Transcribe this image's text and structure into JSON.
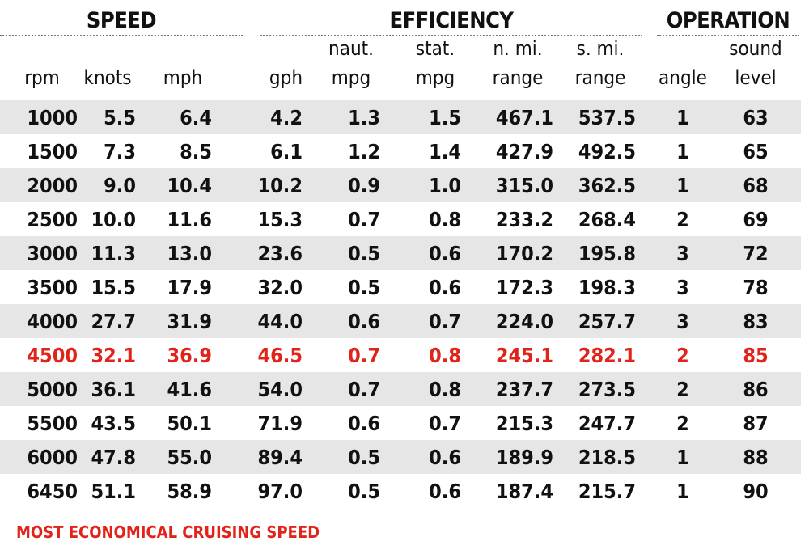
{
  "chart_data": {
    "type": "table",
    "groups": [
      {
        "key": "speed",
        "title": "SPEED"
      },
      {
        "key": "efficiency",
        "title": "EFFICIENCY"
      },
      {
        "key": "operation",
        "title": "OPERATION"
      }
    ],
    "columns": [
      {
        "key": "rpm",
        "line1": "",
        "line2": "rpm"
      },
      {
        "key": "knots",
        "line1": "",
        "line2": "knots"
      },
      {
        "key": "mph",
        "line1": "",
        "line2": "mph"
      },
      {
        "key": "gph",
        "line1": "",
        "line2": "gph"
      },
      {
        "key": "naut_mpg",
        "line1": "naut.",
        "line2": "mpg"
      },
      {
        "key": "stat_mpg",
        "line1": "stat.",
        "line2": "mpg"
      },
      {
        "key": "n_mi_range",
        "line1": "n. mi.",
        "line2": "range"
      },
      {
        "key": "s_mi_range",
        "line1": "s. mi.",
        "line2": "range"
      },
      {
        "key": "angle",
        "line1": "",
        "line2": "angle"
      },
      {
        "key": "sound_level",
        "line1": "sound",
        "line2": "level"
      }
    ],
    "rows": [
      [
        "1000",
        "5.5",
        "6.4",
        "4.2",
        "1.3",
        "1.5",
        "467.1",
        "537.5",
        "1",
        "63"
      ],
      [
        "1500",
        "7.3",
        "8.5",
        "6.1",
        "1.2",
        "1.4",
        "427.9",
        "492.5",
        "1",
        "65"
      ],
      [
        "2000",
        "9.0",
        "10.4",
        "10.2",
        "0.9",
        "1.0",
        "315.0",
        "362.5",
        "1",
        "68"
      ],
      [
        "2500",
        "10.0",
        "11.6",
        "15.3",
        "0.7",
        "0.8",
        "233.2",
        "268.4",
        "2",
        "69"
      ],
      [
        "3000",
        "11.3",
        "13.0",
        "23.6",
        "0.5",
        "0.6",
        "170.2",
        "195.8",
        "3",
        "72"
      ],
      [
        "3500",
        "15.5",
        "17.9",
        "32.0",
        "0.5",
        "0.6",
        "172.3",
        "198.3",
        "3",
        "78"
      ],
      [
        "4000",
        "27.7",
        "31.9",
        "44.0",
        "0.6",
        "0.7",
        "224.0",
        "257.7",
        "3",
        "83"
      ],
      [
        "4500",
        "32.1",
        "36.9",
        "46.5",
        "0.7",
        "0.8",
        "245.1",
        "282.1",
        "2",
        "85"
      ],
      [
        "5000",
        "36.1",
        "41.6",
        "54.0",
        "0.7",
        "0.8",
        "237.7",
        "273.5",
        "2",
        "86"
      ],
      [
        "5500",
        "43.5",
        "50.1",
        "71.9",
        "0.6",
        "0.7",
        "215.3",
        "247.7",
        "2",
        "87"
      ],
      [
        "6000",
        "47.8",
        "55.0",
        "89.4",
        "0.5",
        "0.6",
        "189.9",
        "218.5",
        "1",
        "88"
      ],
      [
        "6450",
        "51.1",
        "58.9",
        "97.0",
        "0.5",
        "0.6",
        "187.4",
        "215.7",
        "1",
        "90"
      ]
    ],
    "highlight_row_index": 7,
    "footnote": "MOST ECONOMICAL CRUISING SPEED",
    "colors": {
      "highlight": "#e2231a",
      "row_alt_background": "#e6e6e6",
      "text": "#111111"
    }
  }
}
